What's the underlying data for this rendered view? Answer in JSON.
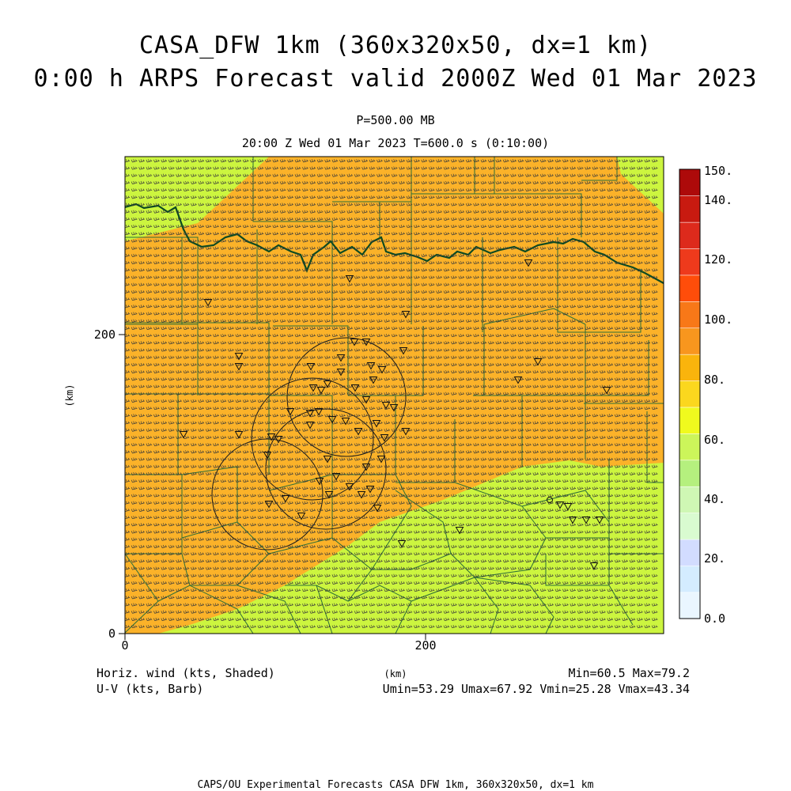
{
  "title": {
    "line1": "CASA_DFW 1km (360x320x50, dx=1 km)",
    "line2": "0:00 h ARPS Forecast valid 2000Z Wed 01 Mar 2023"
  },
  "subtitle": {
    "pressure_level": "P=500.00 MB",
    "time_line": "20:00 Z Wed 01 Mar 2023   T=600.0 s (0:10:00)"
  },
  "axes": {
    "x_label": "(km)",
    "y_label": "(km)",
    "x_ticks": [
      "0",
      "200"
    ],
    "y_ticks": [
      "0",
      "200"
    ]
  },
  "colorbar": {
    "labels": [
      "0.0",
      "20.",
      "40.",
      "60.",
      "80.",
      "100.",
      "120.",
      "140.",
      "150."
    ],
    "colors": [
      "#eaf6ff",
      "#d4ecff",
      "#d2dcff",
      "#d9fbd0",
      "#cff7b4",
      "#b5f07e",
      "#ccf55a",
      "#f0fa1e",
      "#fbd71e",
      "#fab40c",
      "#f8961e",
      "#f87818",
      "#ff4d0a",
      "#ee3a1c",
      "#dd2a1c",
      "#c81a10",
      "#ad0a0a"
    ]
  },
  "field": {
    "name": "Horiz. wind (kts, Shaded)",
    "vector_name": "U-V (kts, Barb)",
    "min_max": "Min=60.5 Max=79.2",
    "uv_stats": "Umin=53.29 Umax=67.92 Vmin=25.28 Vmax=43.34",
    "colors": {
      "low": "#ccf53f",
      "high": "#fbb229",
      "boundary": "#2d6e38",
      "river": "#0d4a22"
    }
  },
  "footer": "CAPS/OU Experimental Forecasts  CASA DFW 1km, 360x320x50, dx=1 km"
}
